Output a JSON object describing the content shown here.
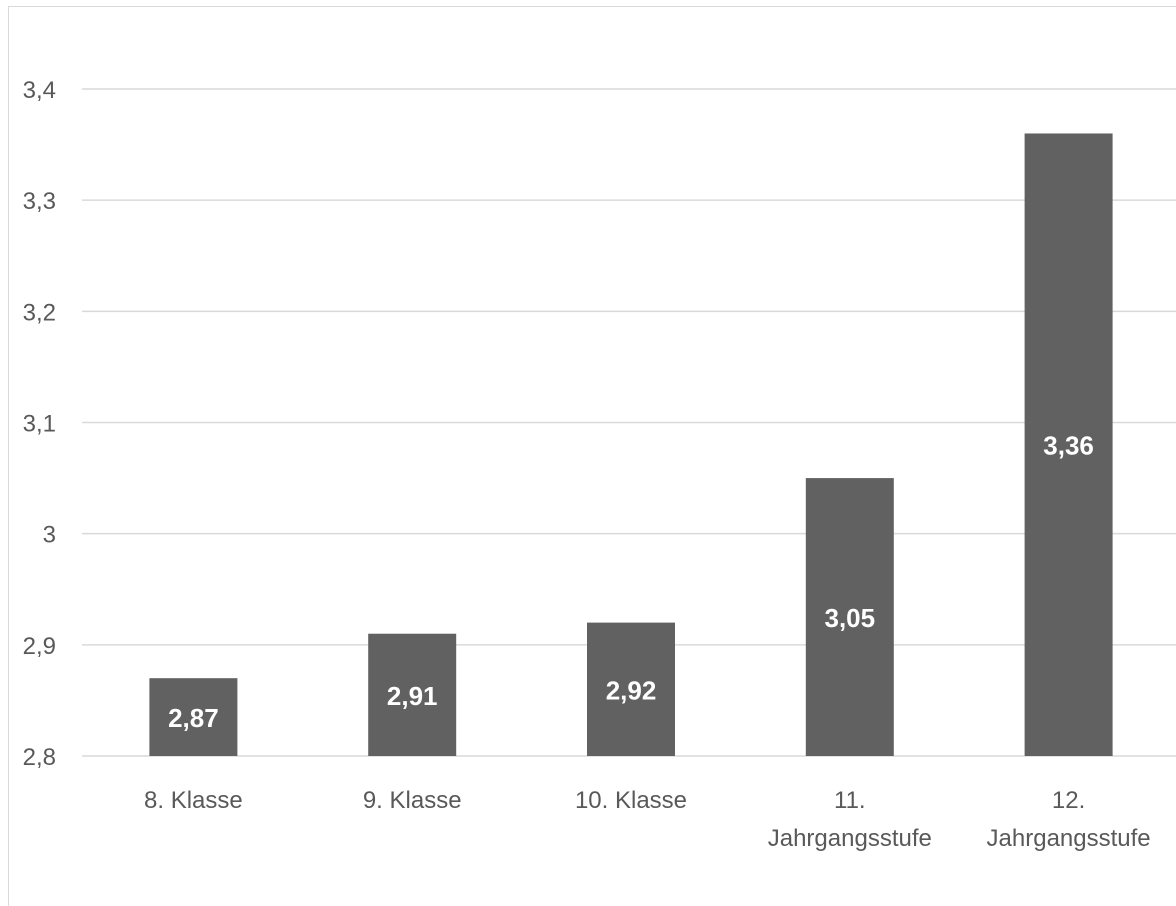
{
  "chart_data": {
    "type": "bar",
    "categories": [
      [
        "8. Klasse"
      ],
      [
        "9. Klasse"
      ],
      [
        "10. Klasse"
      ],
      [
        "11.",
        "Jahrgangsstufe"
      ],
      [
        "12.",
        "Jahrgangsstufe"
      ]
    ],
    "values": [
      2.87,
      2.91,
      2.92,
      3.05,
      3.36
    ],
    "value_labels": [
      "2,87",
      "2,91",
      "2,92",
      "3,05",
      "3,36"
    ],
    "y_ticks": [
      {
        "value": 2.8,
        "label": "2,8"
      },
      {
        "value": 2.9,
        "label": "2,9"
      },
      {
        "value": 3.0,
        "label": "3"
      },
      {
        "value": 3.1,
        "label": "3,1"
      },
      {
        "value": 3.2,
        "label": "3,2"
      },
      {
        "value": 3.3,
        "label": "3,3"
      },
      {
        "value": 3.4,
        "label": "3,4"
      }
    ],
    "ylim": [
      2.8,
      3.4
    ],
    "grid": true,
    "bar_color": "#616161",
    "grid_color": "#d9d9d9",
    "legend": "none"
  }
}
